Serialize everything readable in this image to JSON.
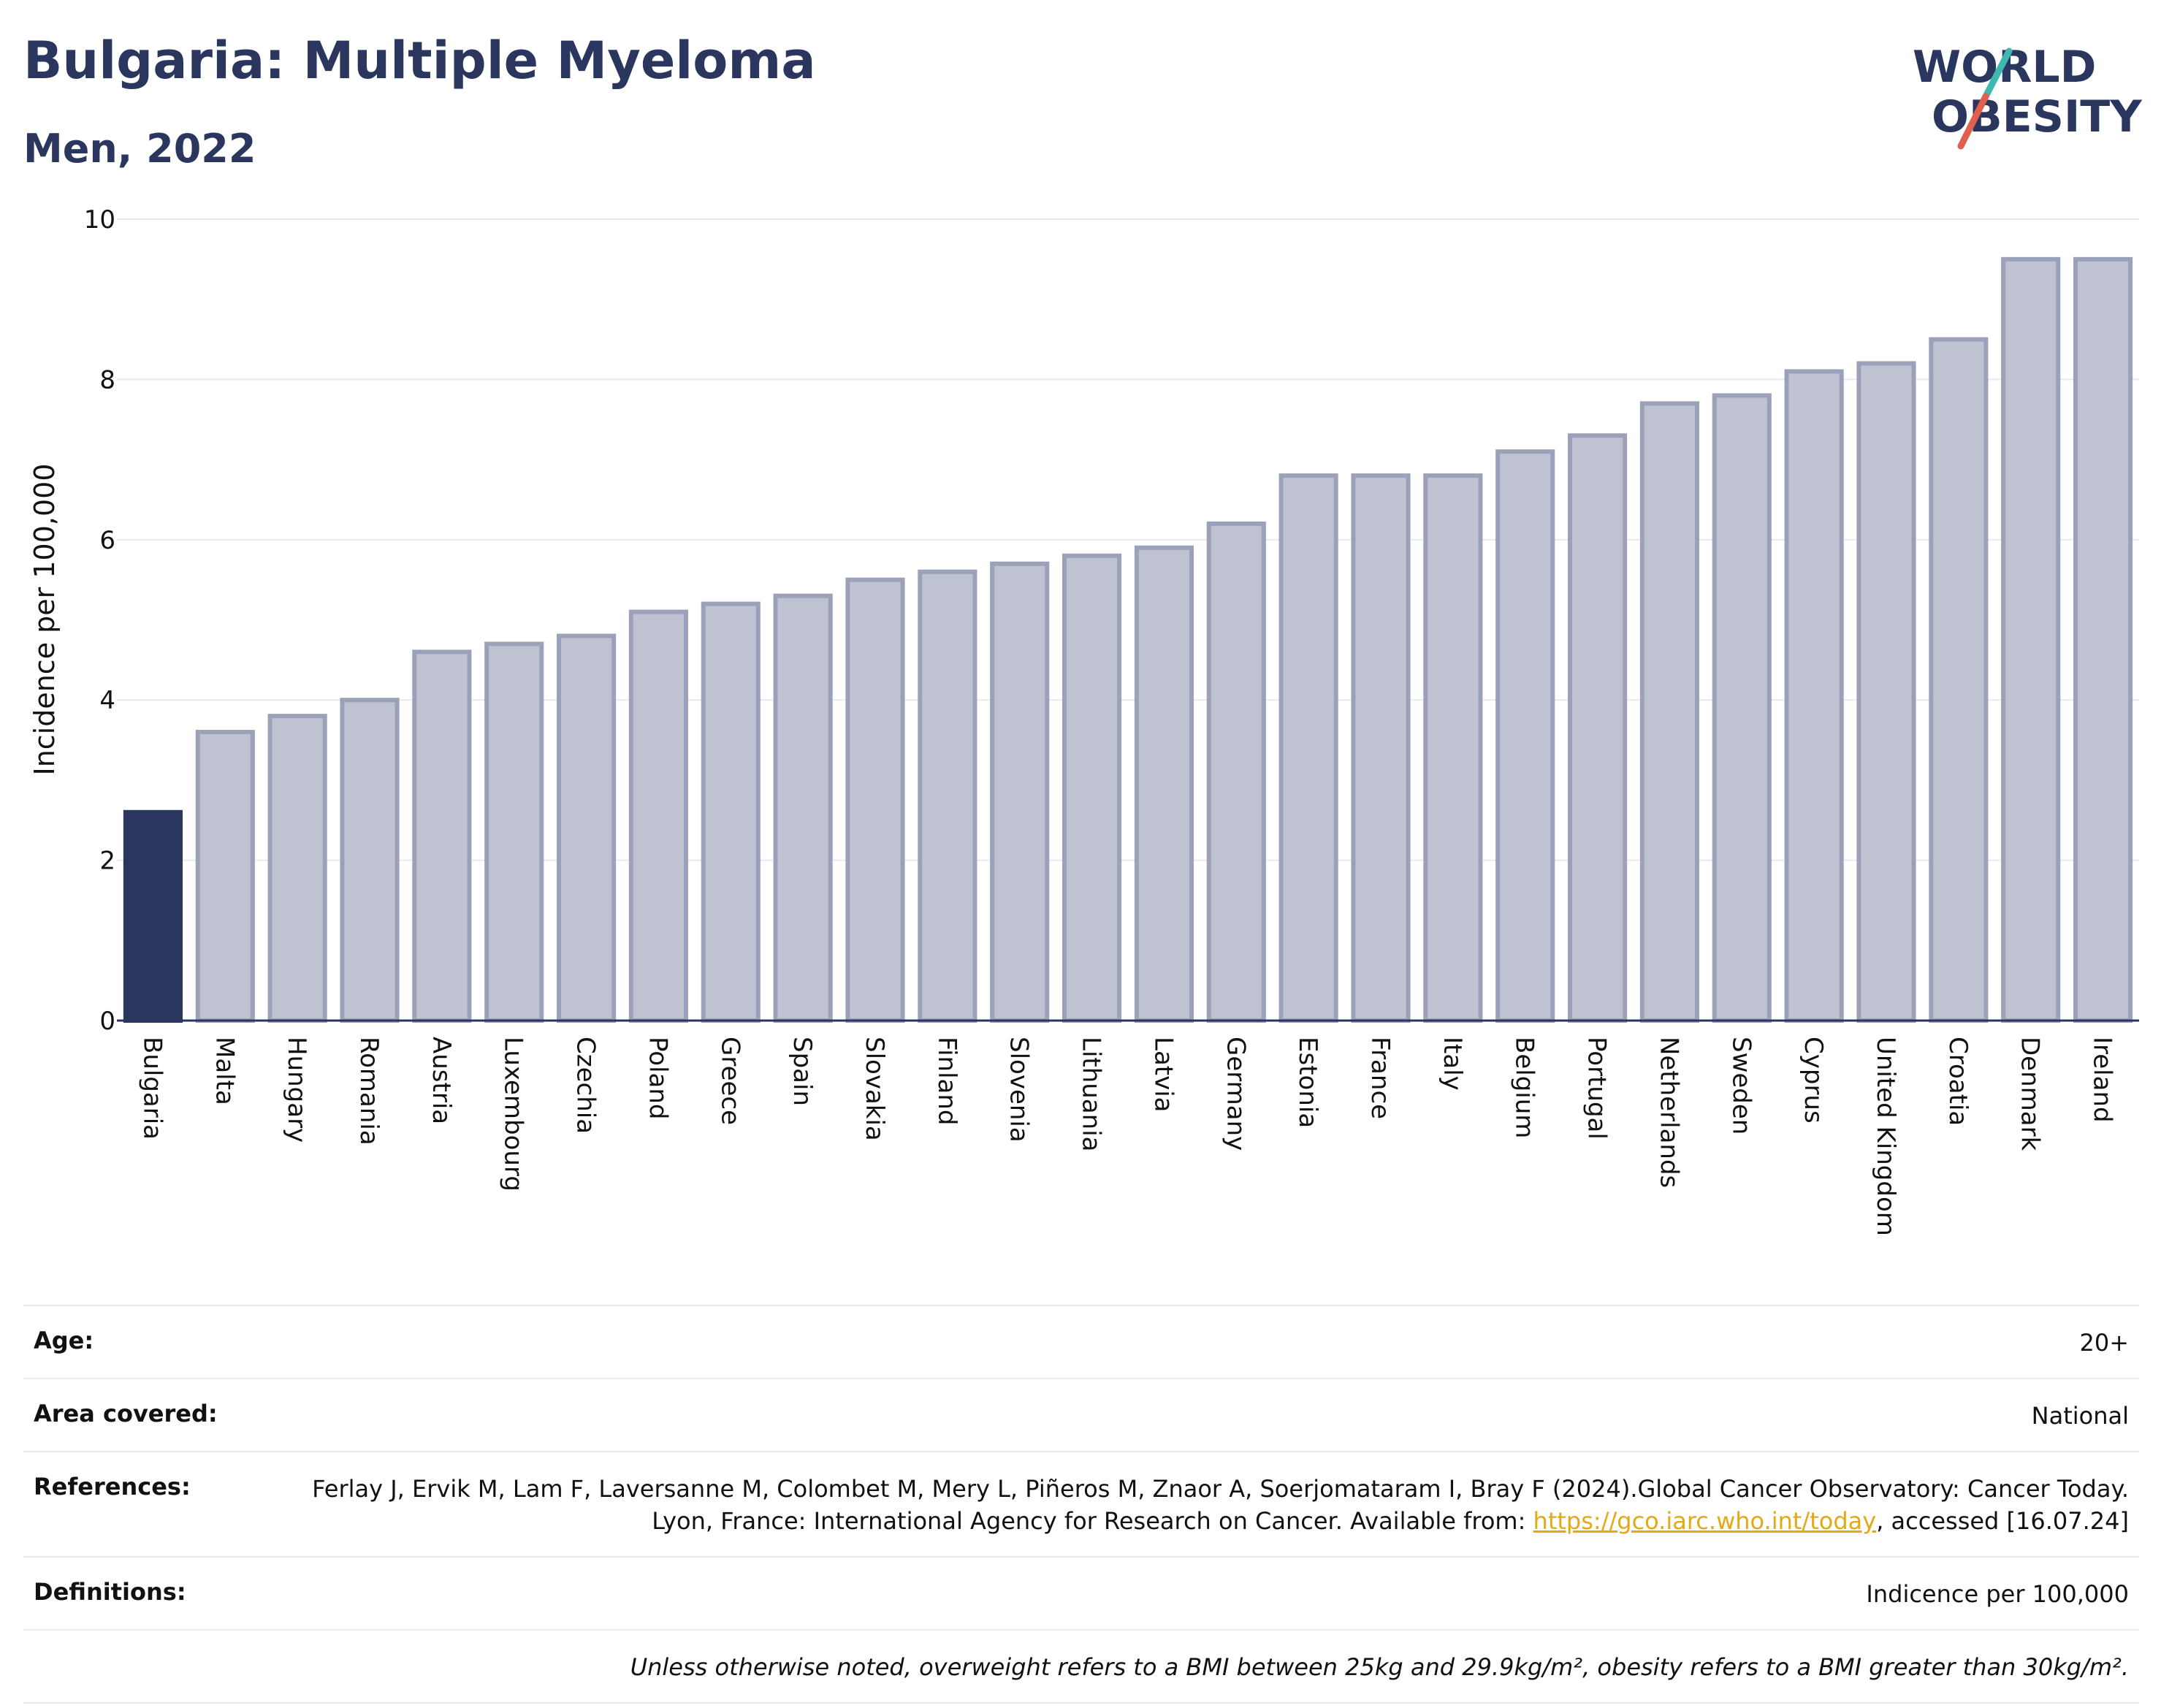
{
  "header": {
    "title": "Bulgaria: Multiple Myeloma",
    "subtitle": "Men, 2022"
  },
  "logo": {
    "line1": "WORLD",
    "line2": "OBESITY",
    "colors": {
      "text": "#2b365e",
      "slash_teal": "#3fb8b0",
      "slash_red": "#e0604f"
    }
  },
  "chart_data": {
    "type": "bar",
    "ylabel": "Incidence per 100,000",
    "xlabel": "",
    "ylim": [
      0,
      10
    ],
    "yticks": [
      0,
      2,
      4,
      6,
      8,
      10
    ],
    "grid": true,
    "highlight": "Bulgaria",
    "categories": [
      "Bulgaria",
      "Malta",
      "Hungary",
      "Romania",
      "Austria",
      "Luxembourg",
      "Czechia",
      "Poland",
      "Greece",
      "Spain",
      "Slovakia",
      "Finland",
      "Slovenia",
      "Lithuania",
      "Latvia",
      "Germany",
      "Estonia",
      "France",
      "Italy",
      "Belgium",
      "Portugal",
      "Netherlands",
      "Sweden",
      "Cyprus",
      "United Kingdom",
      "Croatia",
      "Denmark",
      "Ireland"
    ],
    "values": [
      2.6,
      3.6,
      3.8,
      4.0,
      4.6,
      4.7,
      4.8,
      5.1,
      5.2,
      5.3,
      5.5,
      5.6,
      5.7,
      5.8,
      5.9,
      6.2,
      6.8,
      6.8,
      6.8,
      7.1,
      7.3,
      7.7,
      7.8,
      8.1,
      8.2,
      8.5,
      9.5,
      9.5
    ],
    "colors": {
      "highlight": "#2b365e",
      "bar_fill": "#bfc3d1",
      "bar_stroke": "#9ba1b8",
      "grid": "#e6e9f0",
      "axis": "#2b365e"
    }
  },
  "info": {
    "age_label": "Age:",
    "age_value": "20+",
    "area_label": "Area covered:",
    "area_value": "National",
    "references_label": "References:",
    "references_text": "Ferlay J, Ervik M, Lam F, Laversanne M, Colombet M, Mery L, Piñeros M, Znaor A, Soerjomataram I, Bray F (2024).Global Cancer Observatory: Cancer Today. Lyon, France: International Agency for Research on Cancer. Available from: ",
    "references_link": "https://gco.iarc.who.int/today",
    "references_suffix": ", accessed [16.07.24]",
    "definitions_label": "Definitions:",
    "definitions_value": "Indicence per 100,000",
    "note": "Unless otherwise noted, overweight refers to a BMI between 25kg and 29.9kg/m², obesity refers to a BMI greater than 30kg/m²."
  }
}
